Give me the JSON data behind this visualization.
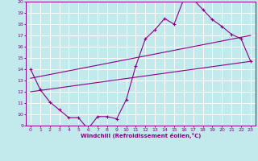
{
  "title": "",
  "xlabel": "Windchill (Refroidissement éolien,°C)",
  "xlim": [
    -0.5,
    23.5
  ],
  "ylim": [
    9,
    20
  ],
  "xticks": [
    0,
    1,
    2,
    3,
    4,
    5,
    6,
    7,
    8,
    9,
    10,
    11,
    12,
    13,
    14,
    15,
    16,
    17,
    18,
    19,
    20,
    21,
    22,
    23
  ],
  "yticks": [
    9,
    10,
    11,
    12,
    13,
    14,
    15,
    16,
    17,
    18,
    19,
    20
  ],
  "bg_color": "#c2eaed",
  "line_color": "#880088",
  "grid_color": "#ffffff",
  "line1_x": [
    0,
    1,
    2,
    3,
    4,
    5,
    6,
    7,
    8,
    9,
    10,
    11,
    12,
    13,
    14,
    15,
    16,
    17,
    18,
    19,
    20,
    21,
    22,
    23
  ],
  "line1_y": [
    14.0,
    12.2,
    11.1,
    10.4,
    9.7,
    9.7,
    8.7,
    9.8,
    9.8,
    9.6,
    11.3,
    14.3,
    16.7,
    17.5,
    18.5,
    18.0,
    20.2,
    20.2,
    19.3,
    18.4,
    17.8,
    17.1,
    16.7,
    14.7
  ],
  "line2_x": [
    0,
    23
  ],
  "line2_y": [
    12.0,
    14.7
  ],
  "line3_x": [
    0,
    23
  ],
  "line3_y": [
    13.2,
    17.0
  ]
}
